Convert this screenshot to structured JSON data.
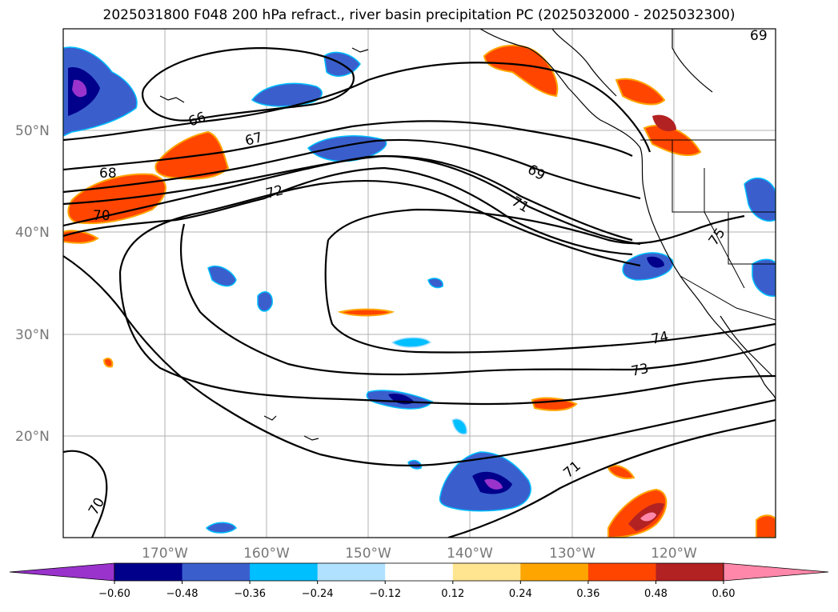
{
  "title": "2025031800 F048 200 hPa refract., river basin precipitation PC (2025032000 - 2025032300)",
  "map": {
    "lon_range": [
      -180,
      -110
    ],
    "lat_range": [
      10,
      60
    ],
    "lat_labels": [
      "50°N",
      "40°N",
      "30°N",
      "20°N"
    ],
    "lon_labels": [
      "170°W",
      "160°W",
      "150°W",
      "140°W",
      "130°W",
      "120°W"
    ],
    "grid": true,
    "contour_labels": [
      "66",
      "67",
      "68",
      "69",
      "70",
      "71",
      "72",
      "73",
      "74",
      "75",
      "70",
      "71",
      "69"
    ]
  },
  "colorbar": {
    "ticks": [
      "−0.60",
      "−0.48",
      "−0.36",
      "−0.24",
      "−0.12",
      "0.12",
      "0.24",
      "0.36",
      "0.48",
      "0.60"
    ],
    "colors": [
      "#9933cc",
      "#00008b",
      "#3a5fcd",
      "#00bfff",
      "#b0e2ff",
      "#ffffff",
      "#ffe58f",
      "#ffa500",
      "#ff4500",
      "#b22222",
      "#ff88aa"
    ],
    "extend": "both"
  }
}
